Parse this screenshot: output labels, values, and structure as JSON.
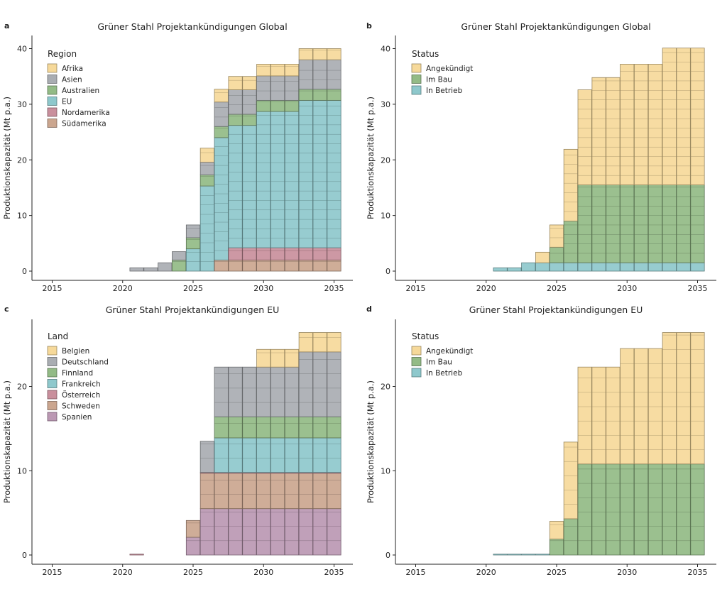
{
  "colors": {
    "yellow": "#f6d99a",
    "grey": "#a9adb2",
    "green": "#93bb86",
    "teal": "#8ec8cc",
    "rose": "#c98f9c",
    "tan": "#cba68f",
    "mauve": "#bb98b3"
  },
  "chart_data": [
    {
      "panel": "a",
      "type": "bar",
      "stacked": true,
      "title": "Grüner Stahl Projektankündigungen Global",
      "ylabel": "Produktionskapazität (Mt p.a.)",
      "xlabel": "",
      "xlim": [
        2014,
        2036
      ],
      "ylim": [
        0,
        40
      ],
      "xticks": [
        2015,
        2020,
        2025,
        2030,
        2035
      ],
      "yticks": [
        0,
        10,
        20,
        30,
        40
      ],
      "legend_title": "Region",
      "legend_position": "top-left",
      "x": [
        2021,
        2022,
        2023,
        2024,
        2025,
        2026,
        2027,
        2028,
        2029,
        2030,
        2031,
        2032,
        2033,
        2034,
        2035
      ],
      "series": [
        {
          "name": "Südamerika",
          "color": "#cba68f",
          "values": [
            0,
            0,
            0,
            0,
            0,
            0,
            2,
            2,
            2,
            2,
            2,
            2,
            2,
            2,
            2
          ]
        },
        {
          "name": "Nordamerika",
          "color": "#c98f9c",
          "values": [
            0,
            0,
            0,
            0,
            0,
            0,
            0,
            2.2,
            2.2,
            2.2,
            2.2,
            2.2,
            2.2,
            2.2,
            2.2
          ]
        },
        {
          "name": "EU",
          "color": "#8ec8cc",
          "values": [
            0,
            0,
            0,
            0,
            4,
            15.3,
            22,
            22,
            22,
            24.5,
            24.5,
            24.5,
            26.5,
            26.5,
            26.5
          ]
        },
        {
          "name": "Australien",
          "color": "#93bb86",
          "values": [
            0,
            0,
            0,
            2,
            2,
            2,
            2,
            2,
            2,
            2,
            2,
            2,
            2,
            2,
            2
          ]
        },
        {
          "name": "Asien",
          "color": "#a9adb2",
          "values": [
            0.6,
            0.6,
            1.5,
            1.5,
            2.3,
            2.3,
            4.4,
            4.4,
            4.4,
            4.4,
            4.4,
            4.4,
            5.3,
            5.3,
            5.3
          ]
        },
        {
          "name": "Afrika",
          "color": "#f6d99a",
          "values": [
            0,
            0,
            0,
            0,
            0,
            2.5,
            2.3,
            2.4,
            2.4,
            2.1,
            2.1,
            2.1,
            2,
            2,
            2
          ]
        }
      ]
    },
    {
      "panel": "b",
      "type": "bar",
      "stacked": true,
      "title": "Grüner Stahl Projektankündigungen Global",
      "ylabel": "Produktionskapazität (Mt p.a.)",
      "xlabel": "",
      "xlim": [
        2014,
        2036
      ],
      "ylim": [
        0,
        40
      ],
      "xticks": [
        2015,
        2020,
        2025,
        2030,
        2035
      ],
      "yticks": [
        0,
        10,
        20,
        30,
        40
      ],
      "legend_title": "Status",
      "legend_position": "top-left",
      "x": [
        2021,
        2022,
        2023,
        2024,
        2025,
        2026,
        2027,
        2028,
        2029,
        2030,
        2031,
        2032,
        2033,
        2034,
        2035
      ],
      "series": [
        {
          "name": "In Betrieb",
          "color": "#8ec8cc",
          "values": [
            0.6,
            0.6,
            1.5,
            1.5,
            1.5,
            1.5,
            1.5,
            1.5,
            1.5,
            1.5,
            1.5,
            1.5,
            1.5,
            1.5,
            1.5
          ]
        },
        {
          "name": "Im Bau",
          "color": "#93bb86",
          "values": [
            0,
            0,
            0,
            0,
            2.8,
            7.5,
            14,
            14,
            14,
            14,
            14,
            14,
            14,
            14,
            14
          ]
        },
        {
          "name": "Angekündigt",
          "color": "#f6d99a",
          "values": [
            0,
            0,
            0,
            1.9,
            4,
            12.9,
            17.1,
            19.3,
            19.3,
            21.7,
            21.7,
            21.7,
            24.6,
            24.6,
            24.6
          ]
        }
      ]
    },
    {
      "panel": "c",
      "type": "bar",
      "stacked": true,
      "title": "Grüner Stahl Projektankündigungen EU",
      "ylabel": "Produktionskapazität (Mt p.a.)",
      "xlabel": "",
      "xlim": [
        2014,
        2036
      ],
      "ylim": [
        0,
        27
      ],
      "xticks": [
        2015,
        2020,
        2025,
        2030,
        2035
      ],
      "yticks": [
        0,
        10,
        20
      ],
      "legend_title": "Land",
      "legend_position": "top-left",
      "x": [
        2021,
        2022,
        2023,
        2024,
        2025,
        2026,
        2027,
        2028,
        2029,
        2030,
        2031,
        2032,
        2033,
        2034,
        2035
      ],
      "series": [
        {
          "name": "Spanien",
          "color": "#bb98b3",
          "values": [
            0,
            0,
            0,
            0,
            2.1,
            5.5,
            5.5,
            5.5,
            5.5,
            5.5,
            5.5,
            5.5,
            5.5,
            5.5,
            5.5
          ]
        },
        {
          "name": "Schweden",
          "color": "#cba68f",
          "values": [
            0,
            0,
            0,
            0,
            2,
            4.2,
            4.2,
            4.2,
            4.2,
            4.2,
            4.2,
            4.2,
            4.2,
            4.2,
            4.2
          ]
        },
        {
          "name": "Österreich",
          "color": "#c98f9c",
          "values": [
            0.05,
            0,
            0,
            0,
            0,
            0.1,
            0.1,
            0.1,
            0.1,
            0.1,
            0.1,
            0.1,
            0.1,
            0.1,
            0.1
          ]
        },
        {
          "name": "Frankreich",
          "color": "#8ec8cc",
          "values": [
            0,
            0,
            0,
            0,
            0,
            0,
            4.1,
            4.1,
            4.1,
            4.1,
            4.1,
            4.1,
            4.1,
            4.1,
            4.1
          ]
        },
        {
          "name": "Finnland",
          "color": "#93bb86",
          "values": [
            0,
            0,
            0,
            0,
            0,
            0,
            2.5,
            2.5,
            2.5,
            2.5,
            2.5,
            2.5,
            2.5,
            2.5,
            2.5
          ]
        },
        {
          "name": "Deutschland",
          "color": "#a9adb2",
          "values": [
            0,
            0,
            0,
            0,
            0,
            3.7,
            5.9,
            5.9,
            5.9,
            5.9,
            5.9,
            5.9,
            7.7,
            7.7,
            7.7
          ]
        },
        {
          "name": "Belgien",
          "color": "#f6d99a",
          "values": [
            0,
            0,
            0,
            0,
            0,
            0,
            0,
            0,
            0,
            2.1,
            2.1,
            2.1,
            2.3,
            2.3,
            2.3
          ]
        }
      ]
    },
    {
      "panel": "d",
      "type": "bar",
      "stacked": true,
      "title": "Grüner Stahl Projektankündigungen EU",
      "ylabel": "Produktionskapazität (Mt p.a.)",
      "xlabel": "",
      "xlim": [
        2014,
        2036
      ],
      "ylim": [
        0,
        27
      ],
      "xticks": [
        2015,
        2020,
        2025,
        2030,
        2035
      ],
      "yticks": [
        0,
        10,
        20
      ],
      "legend_title": "Status",
      "legend_position": "top-left",
      "x": [
        2021,
        2022,
        2023,
        2024,
        2025,
        2026,
        2027,
        2028,
        2029,
        2030,
        2031,
        2032,
        2033,
        2034,
        2035
      ],
      "series": [
        {
          "name": "In Betrieb",
          "color": "#8ec8cc",
          "values": [
            0.05,
            0.05,
            0.05,
            0.05,
            0,
            0,
            0,
            0,
            0,
            0,
            0,
            0,
            0,
            0,
            0
          ]
        },
        {
          "name": "Im Bau",
          "color": "#93bb86",
          "values": [
            0,
            0,
            0,
            0,
            1.9,
            4.3,
            10.8,
            10.8,
            10.8,
            10.8,
            10.8,
            10.8,
            10.8,
            10.8,
            10.8
          ]
        },
        {
          "name": "Angekündigt",
          "color": "#f6d99a",
          "values": [
            0,
            0,
            0,
            0,
            2.1,
            9.1,
            11.5,
            11.5,
            11.5,
            13.7,
            13.7,
            13.7,
            15.6,
            15.6,
            15.6
          ]
        }
      ]
    }
  ]
}
